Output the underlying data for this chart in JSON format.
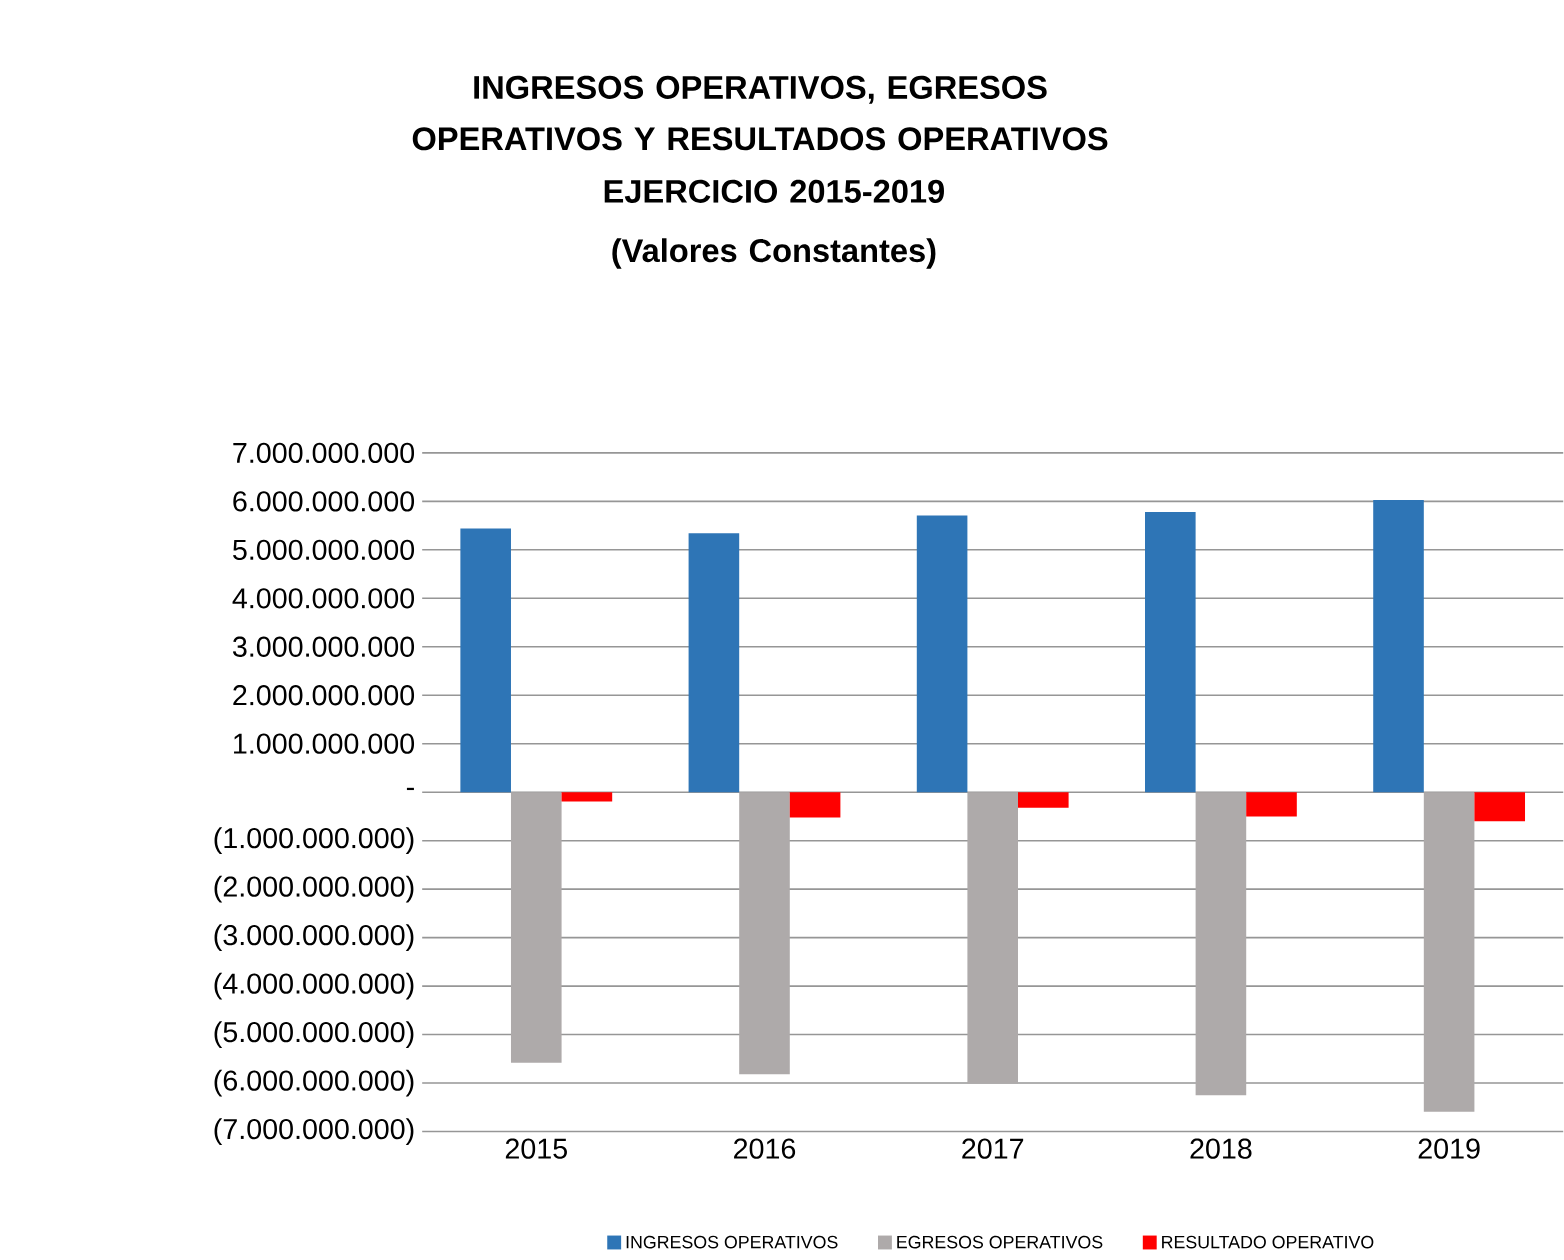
{
  "chart_data": {
    "type": "bar",
    "title": "INGRESOS OPERATIVOS, EGRESOS OPERATIVOS Y RESULTADOS OPERATIVOS",
    "subtitle": "EJERCICIO 2015-2019 (Valores Constantes)",
    "categories": [
      "2015",
      "2016",
      "2017",
      "2018",
      "2019"
    ],
    "series": [
      {
        "name": "INGRESOS OPERATIVOS",
        "color": "#2e75b6",
        "values": [
          5440000000,
          5340000000,
          5710000000,
          5780000000,
          6030000000
        ]
      },
      {
        "name": "EGRESOS OPERATIVOS",
        "color": "#aeaaaa",
        "values": [
          -5580000000,
          -5820000000,
          -6010000000,
          -6250000000,
          -6590000000
        ]
      },
      {
        "name": "RESULTADO OPERATIVO",
        "color": "#ff0000",
        "values": [
          -190000000,
          -520000000,
          -320000000,
          -500000000,
          -600000000
        ]
      }
    ],
    "ylim": [
      -7000000000,
      7000000000
    ],
    "yticks": [
      {
        "value": 7000000000,
        "label": "7.000.000.000"
      },
      {
        "value": 6000000000,
        "label": "6.000.000.000"
      },
      {
        "value": 5000000000,
        "label": "5.000.000.000"
      },
      {
        "value": 4000000000,
        "label": "4.000.000.000"
      },
      {
        "value": 3000000000,
        "label": "3.000.000.000"
      },
      {
        "value": 2000000000,
        "label": "2.000.000.000"
      },
      {
        "value": 1000000000,
        "label": "1.000.000.000"
      },
      {
        "value": 0,
        "label": "-"
      },
      {
        "value": -1000000000,
        "label": "(1.000.000.000)"
      },
      {
        "value": -2000000000,
        "label": "(2.000.000.000)"
      },
      {
        "value": -3000000000,
        "label": "(3.000.000.000)"
      },
      {
        "value": -4000000000,
        "label": "(4.000.000.000)"
      },
      {
        "value": -5000000000,
        "label": "(5.000.000.000)"
      },
      {
        "value": -6000000000,
        "label": "(6.000.000.000)"
      },
      {
        "value": -7000000000,
        "label": "(7.000.000.000)"
      }
    ],
    "grid": "y",
    "legend": "bottom"
  }
}
